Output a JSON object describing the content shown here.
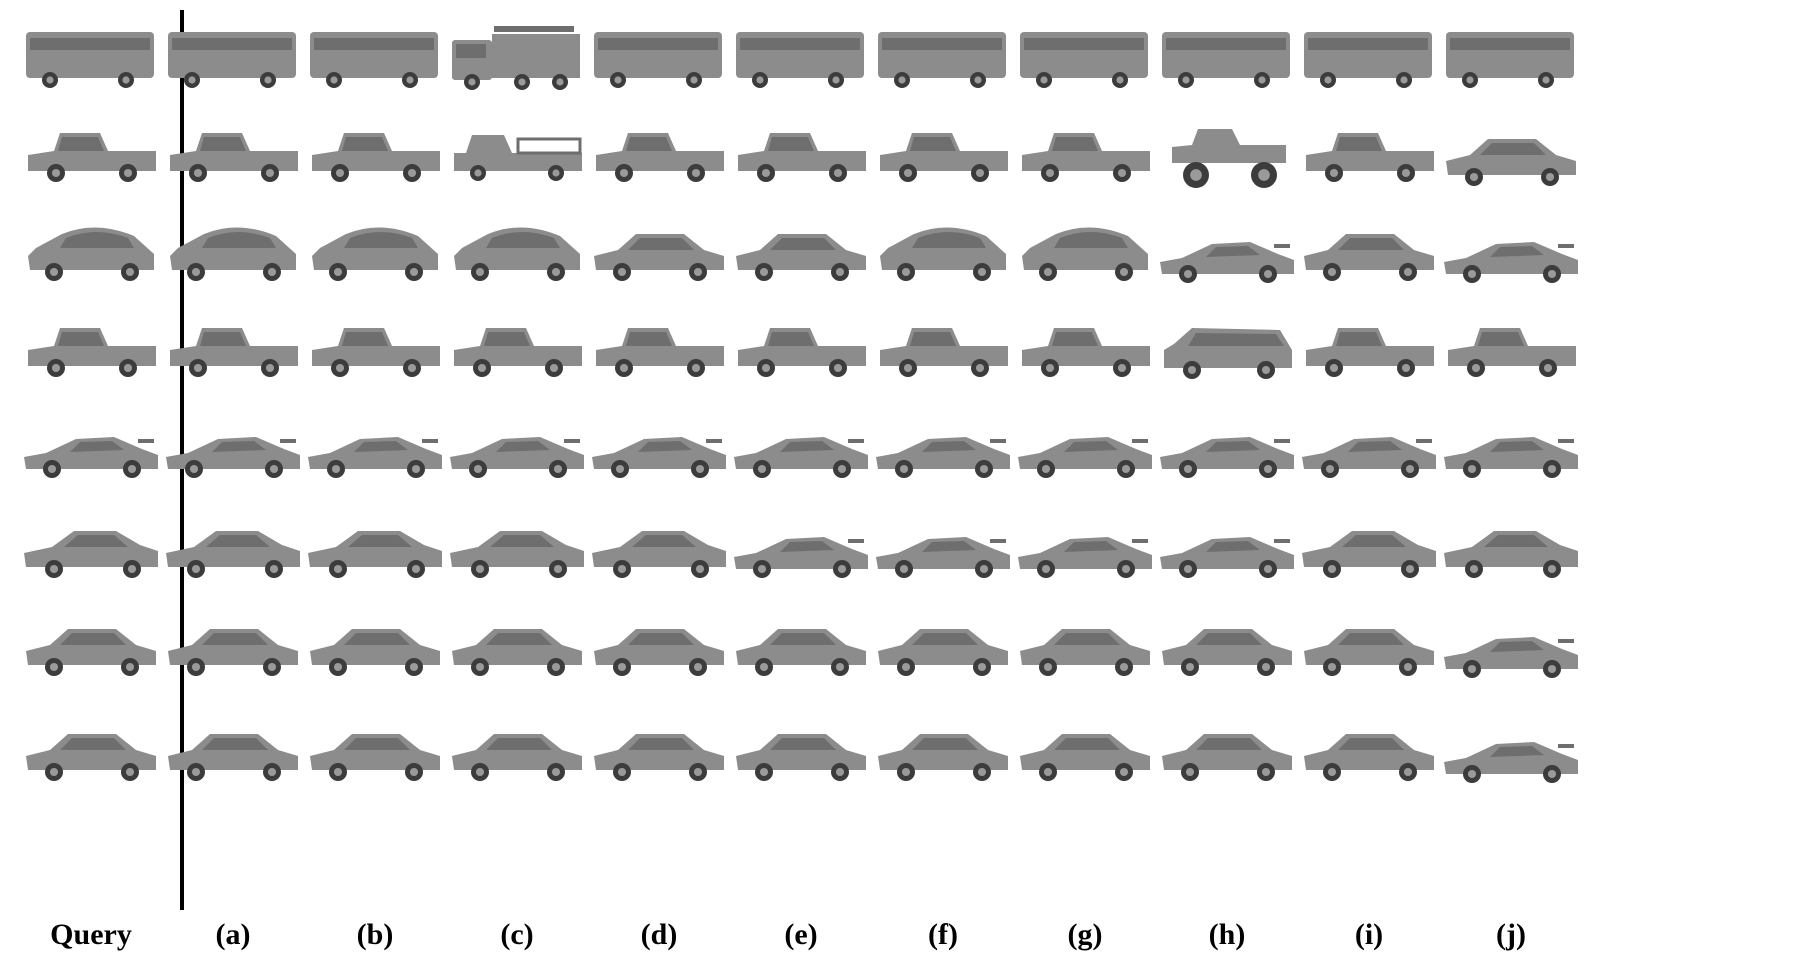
{
  "column_labels": {
    "query": "Query",
    "results": [
      "(a)",
      "(b)",
      "(c)",
      "(d)",
      "(e)",
      "(f)",
      "(g)",
      "(h)",
      "(i)",
      "(j)"
    ]
  },
  "shade_colors": {
    "body": "#8c8c8c",
    "window": "#6e6e6e",
    "wheel": "#3c3c3c",
    "rim": "#9a9a9a"
  },
  "rows": [
    {
      "query": "bus",
      "results": [
        "bus",
        "bus",
        "fire-truck",
        "bus",
        "bus",
        "bus",
        "bus",
        "bus",
        "bus",
        "bus"
      ]
    },
    {
      "query": "pickup",
      "results": [
        "pickup",
        "pickup",
        "flatbed-truck",
        "pickup",
        "pickup",
        "pickup",
        "pickup",
        "monster-truck",
        "pickup",
        "sedan"
      ]
    },
    {
      "query": "hatchback",
      "results": [
        "hatchback",
        "hatchback",
        "hatchback",
        "sedan",
        "sedan",
        "hatchback",
        "hatchback",
        "sports-car",
        "sedan",
        "sports-car"
      ]
    },
    {
      "query": "pickup",
      "results": [
        "pickup",
        "pickup",
        "pickup",
        "pickup",
        "pickup",
        "pickup",
        "pickup",
        "suv",
        "pickup",
        "pickup"
      ]
    },
    {
      "query": "sports-car",
      "results": [
        "sports-car",
        "sports-car",
        "sports-car",
        "sports-car",
        "sports-car",
        "sports-car",
        "sports-car",
        "sports-car",
        "sports-car",
        "sports-car"
      ]
    },
    {
      "query": "coupe",
      "results": [
        "coupe",
        "coupe",
        "coupe",
        "coupe",
        "sports-car",
        "sports-car",
        "sports-car",
        "sports-car",
        "coupe",
        "coupe"
      ]
    },
    {
      "query": "sedan",
      "results": [
        "sedan",
        "sedan",
        "sedan",
        "sedan",
        "sedan",
        "sedan",
        "sedan",
        "sedan",
        "sedan",
        "sports-car"
      ]
    },
    {
      "query": "sedan",
      "results": [
        "sedan",
        "sedan",
        "sedan",
        "sedan",
        "sedan",
        "sedan",
        "sedan",
        "sedan",
        "sedan",
        "sports-car"
      ]
    }
  ]
}
